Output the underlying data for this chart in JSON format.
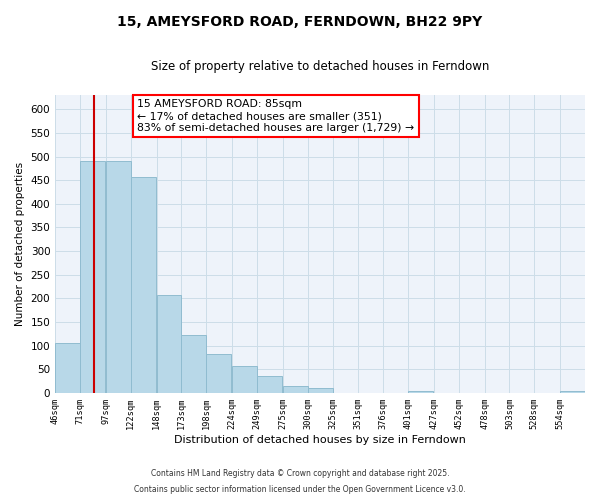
{
  "title1": "15, AMEYSFORD ROAD, FERNDOWN, BH22 9PY",
  "title2": "Size of property relative to detached houses in Ferndown",
  "xlabel": "Distribution of detached houses by size in Ferndown",
  "ylabel": "Number of detached properties",
  "bar_color": "#b8d8e8",
  "bar_edge_color": "#90bcd0",
  "bin_labels": [
    "46sqm",
    "71sqm",
    "97sqm",
    "122sqm",
    "148sqm",
    "173sqm",
    "198sqm",
    "224sqm",
    "249sqm",
    "275sqm",
    "300sqm",
    "325sqm",
    "351sqm",
    "376sqm",
    "401sqm",
    "427sqm",
    "452sqm",
    "478sqm",
    "503sqm",
    "528sqm",
    "554sqm"
  ],
  "bin_edges": [
    46,
    71,
    97,
    122,
    148,
    173,
    198,
    224,
    249,
    275,
    300,
    325,
    351,
    376,
    401,
    427,
    452,
    478,
    503,
    528,
    554
  ],
  "bin_width": 25,
  "bar_heights": [
    105,
    490,
    490,
    457,
    207,
    122,
    82,
    58,
    37,
    15,
    10,
    0,
    0,
    0,
    5,
    0,
    0,
    0,
    0,
    0,
    5
  ],
  "property_line_x": 85,
  "property_line_color": "#cc0000",
  "annotation_title": "15 AMEYSFORD ROAD: 85sqm",
  "annotation_line1": "← 17% of detached houses are smaller (351)",
  "annotation_line2": "83% of semi-detached houses are larger (1,729) →",
  "ylim": [
    0,
    630
  ],
  "yticks": [
    0,
    50,
    100,
    150,
    200,
    250,
    300,
    350,
    400,
    450,
    500,
    550,
    600
  ],
  "footer1": "Contains HM Land Registry data © Crown copyright and database right 2025.",
  "footer2": "Contains public sector information licensed under the Open Government Licence v3.0.",
  "grid_color": "#ccdde8",
  "background_color": "#eef3fa"
}
